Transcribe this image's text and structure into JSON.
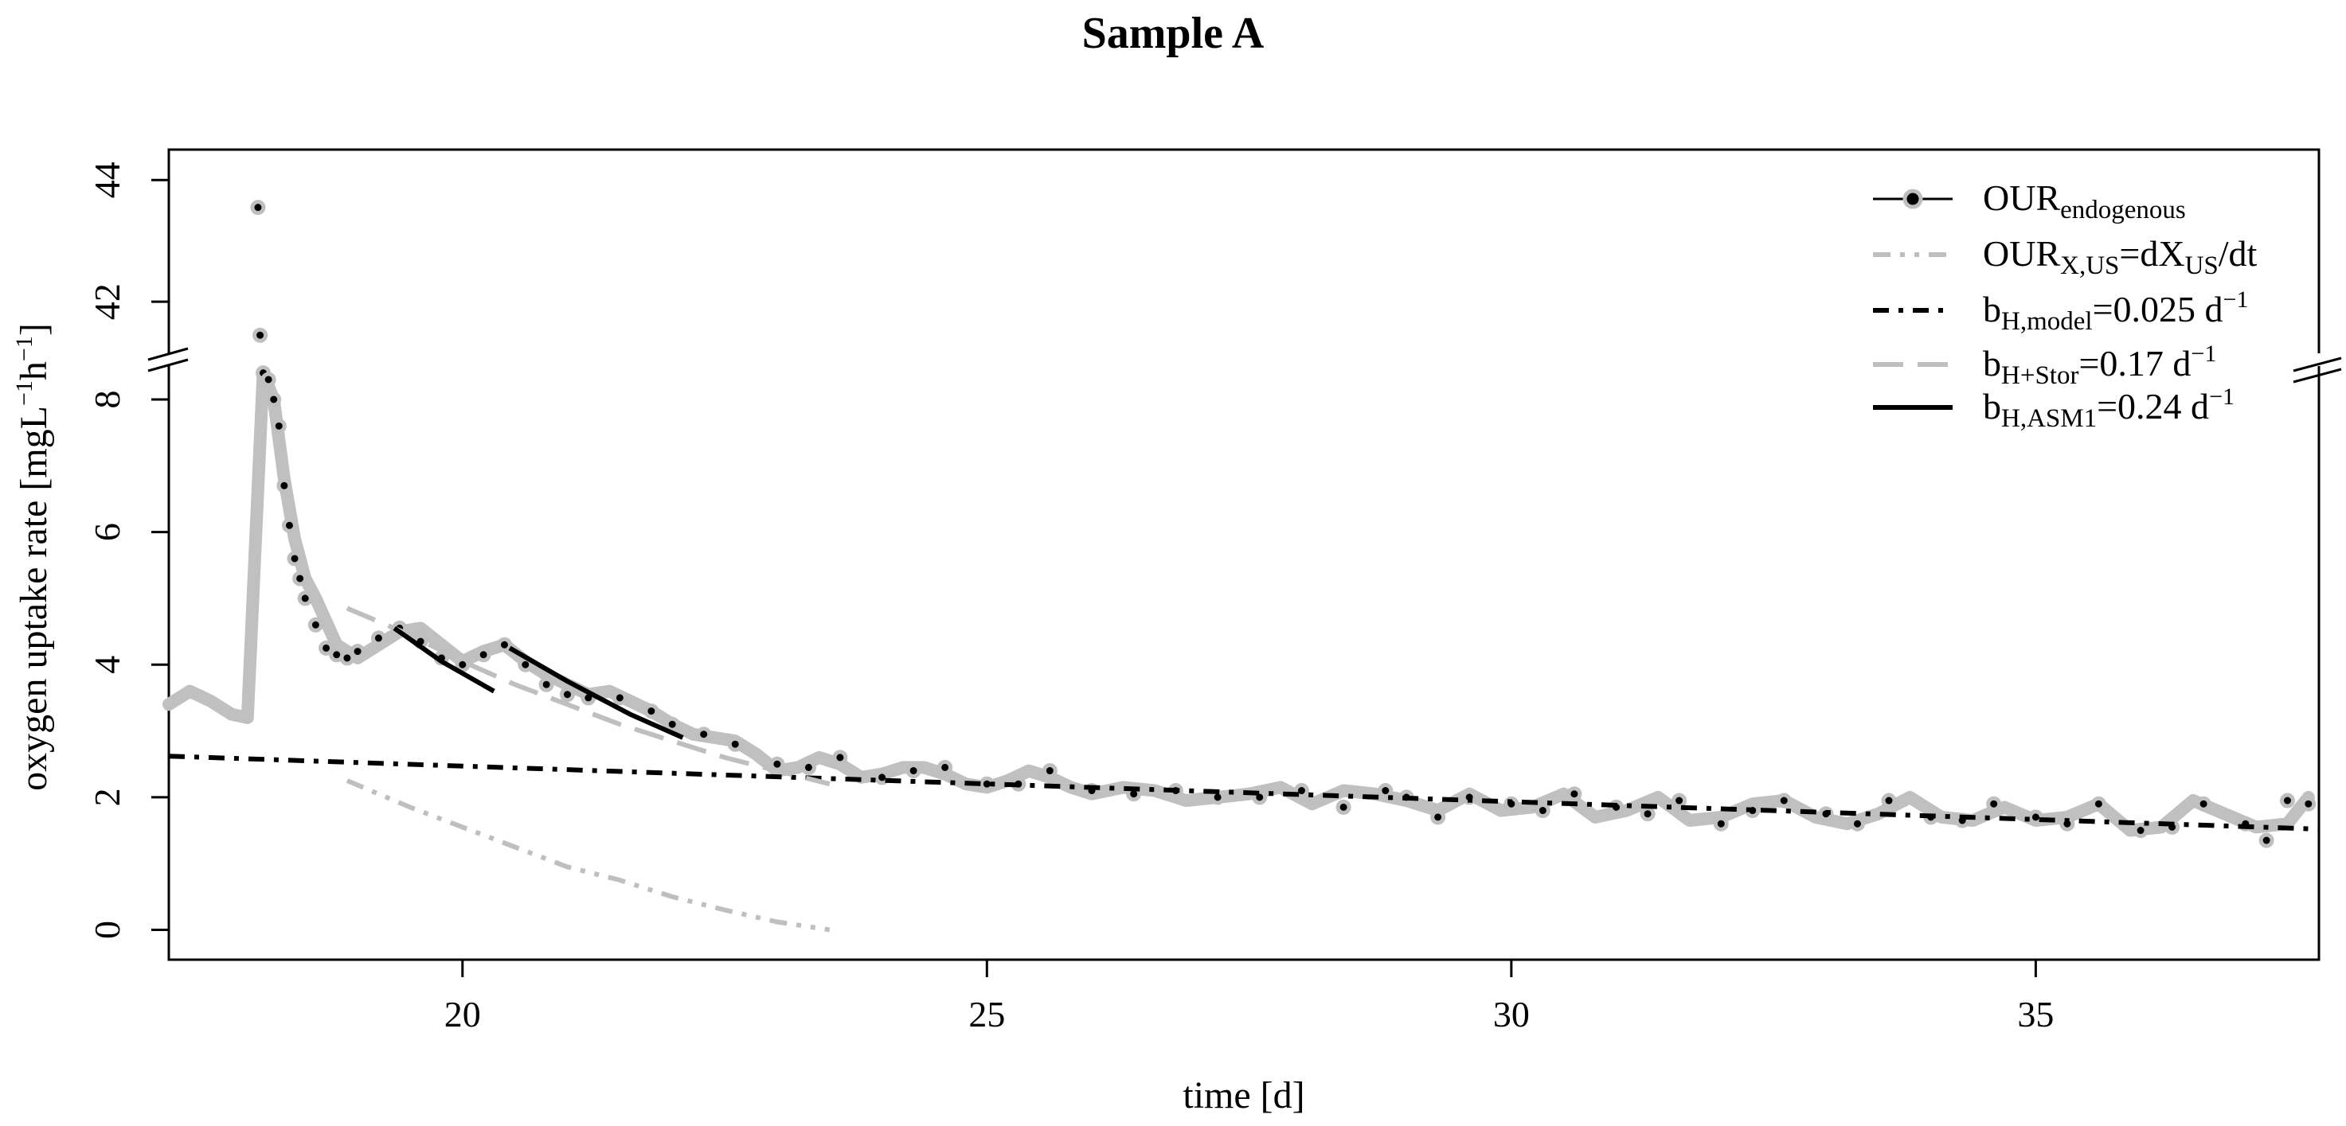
{
  "chart_data": {
    "type": "line",
    "title": "Sample A",
    "xlabel": "time [d]",
    "ylabel_parts": {
      "prefix": "oxygen uptake rate [mgL",
      "sup1": "−1",
      "mid": "h",
      "sup2": "−1",
      "suffix": "]"
    },
    "xlim": [
      17.2,
      37.7
    ],
    "xticks": [
      20,
      25,
      30,
      35
    ],
    "ylim_lower": [
      -0.45,
      8.6
    ],
    "yticks_lower": [
      0,
      2,
      4,
      6,
      8
    ],
    "ylim_upper": [
      41.1,
      44.5
    ],
    "yticks_upper": [
      42,
      44
    ],
    "axis_break": true,
    "grid": false,
    "legend_position": "top-right",
    "series": [
      {
        "name": "OUR",
        "name_sub": "endogenous",
        "name_sup": "",
        "name_tail": "",
        "color": "#000000",
        "style": "points-line",
        "x": [
          18.05,
          18.07,
          18.1,
          18.15,
          18.2,
          18.25,
          18.3,
          18.35,
          18.4,
          18.45,
          18.5,
          18.6,
          18.7,
          18.8,
          18.9,
          19.0,
          19.2,
          19.4,
          19.6,
          19.8,
          20.0,
          20.2,
          20.4,
          20.6,
          20.8,
          21.0,
          21.2,
          21.5,
          21.8,
          22.0,
          22.3,
          22.6,
          23.0,
          23.3,
          23.6,
          24.0,
          24.3,
          24.6,
          25.0,
          25.3,
          25.6,
          26.0,
          26.4,
          26.8,
          27.2,
          27.6,
          28.0,
          28.4,
          28.8,
          29.0,
          29.3,
          29.6,
          30.0,
          30.3,
          30.6,
          31.0,
          31.3,
          31.6,
          32.0,
          32.3,
          32.6,
          33.0,
          33.3,
          33.6,
          34.0,
          34.3,
          34.6,
          35.0,
          35.3,
          35.6,
          36.0,
          36.3,
          36.6,
          37.0,
          37.2,
          37.4,
          37.6
        ],
        "y": [
          43.55,
          41.45,
          8.4,
          8.3,
          8.0,
          7.6,
          6.7,
          6.1,
          5.6,
          5.3,
          5.0,
          4.6,
          4.25,
          4.15,
          4.1,
          4.2,
          4.4,
          4.55,
          4.35,
          4.1,
          4.0,
          4.15,
          4.3,
          4.0,
          3.7,
          3.55,
          3.5,
          3.5,
          3.3,
          3.1,
          2.95,
          2.8,
          2.5,
          2.45,
          2.6,
          2.3,
          2.4,
          2.45,
          2.2,
          2.2,
          2.4,
          2.1,
          2.05,
          2.1,
          2.0,
          2.0,
          2.1,
          1.85,
          2.1,
          2.0,
          1.7,
          2.0,
          1.9,
          1.8,
          2.05,
          1.85,
          1.75,
          1.95,
          1.6,
          1.8,
          1.95,
          1.75,
          1.6,
          1.95,
          1.7,
          1.65,
          1.9,
          1.7,
          1.6,
          1.9,
          1.5,
          1.55,
          1.9,
          1.6,
          1.35,
          1.95,
          1.9
        ]
      },
      {
        "name": "OUR",
        "name_sub": "X,US",
        "name_sup": "",
        "name_tail": "=dX",
        "name_sub2": "US",
        "name_tail2": "/dt",
        "color": "#bfbfbf",
        "style": "dash-dot-dot",
        "x": [
          18.9,
          19.5,
          20.0,
          20.5,
          21.0,
          21.5,
          22.0,
          22.5,
          23.0,
          23.5
        ],
        "y": [
          2.25,
          1.85,
          1.55,
          1.25,
          0.95,
          0.75,
          0.5,
          0.3,
          0.12,
          0.0
        ]
      },
      {
        "name": "b",
        "name_sub": "H,model",
        "name_tail": "=0.025 d",
        "name_sup": "−1",
        "color": "#000000",
        "style": "dash-dot",
        "x": [
          17.2,
          37.7
        ],
        "y": [
          2.62,
          1.52
        ]
      },
      {
        "name": "b",
        "name_sub": "H+Stor",
        "name_tail": "=0.17 d",
        "name_sup": "−1",
        "color": "#bfbfbf",
        "style": "dashed",
        "x": [
          18.9,
          19.5,
          20.0,
          20.5,
          21.0,
          21.5,
          22.0,
          22.5,
          23.0,
          23.5
        ],
        "y": [
          4.85,
          4.45,
          4.05,
          3.7,
          3.4,
          3.1,
          2.85,
          2.6,
          2.4,
          2.2
        ]
      },
      {
        "name": "b",
        "name_sub": "H,ASM1",
        "name_tail": "=0.24 d",
        "name_sup": "−1",
        "color": "#000000",
        "style": "solid",
        "segments": [
          {
            "x": [
              19.35,
              19.8,
              20.3
            ],
            "y": [
              4.55,
              4.05,
              3.6
            ]
          },
          {
            "x": [
              20.45,
              21.0,
              21.6,
              22.1
            ],
            "y": [
              4.25,
              3.75,
              3.25,
              2.9
            ]
          }
        ]
      }
    ],
    "background_trace": {
      "color": "#c0c0c0",
      "x": [
        17.2,
        17.4,
        17.6,
        17.8,
        17.95,
        18.1,
        18.2,
        18.3,
        18.4,
        18.5,
        18.6,
        18.8,
        19.0,
        19.2,
        19.4,
        19.6,
        19.8,
        20.0,
        20.2,
        20.4,
        20.6,
        20.8,
        21.0,
        21.2,
        21.4,
        21.6,
        21.8,
        22.0,
        22.2,
        22.4,
        22.6,
        22.8,
        23.0,
        23.2,
        23.4,
        23.6,
        23.8,
        24.0,
        24.2,
        24.4,
        24.6,
        24.8,
        25.0,
        25.2,
        25.4,
        25.6,
        25.8,
        26.0,
        26.3,
        26.6,
        26.9,
        27.2,
        27.5,
        27.8,
        28.1,
        28.4,
        28.7,
        29.0,
        29.3,
        29.6,
        29.9,
        30.2,
        30.5,
        30.8,
        31.1,
        31.4,
        31.7,
        32.0,
        32.3,
        32.6,
        32.9,
        33.2,
        33.5,
        33.8,
        34.1,
        34.4,
        34.7,
        35.0,
        35.3,
        35.6,
        35.9,
        36.2,
        36.5,
        36.8,
        37.1,
        37.4,
        37.6
      ],
      "y": [
        3.4,
        3.6,
        3.45,
        3.25,
        3.2,
        8.4,
        8.0,
        6.8,
        5.9,
        5.3,
        5.0,
        4.3,
        4.1,
        4.3,
        4.5,
        4.55,
        4.3,
        4.05,
        4.2,
        4.3,
        4.05,
        3.85,
        3.7,
        3.55,
        3.6,
        3.45,
        3.3,
        3.1,
        2.95,
        2.9,
        2.85,
        2.65,
        2.4,
        2.45,
        2.6,
        2.5,
        2.3,
        2.35,
        2.45,
        2.45,
        2.35,
        2.2,
        2.15,
        2.25,
        2.4,
        2.3,
        2.15,
        2.05,
        2.15,
        2.1,
        1.95,
        2.0,
        2.05,
        2.15,
        1.9,
        2.1,
        2.05,
        1.95,
        1.8,
        2.05,
        1.8,
        1.85,
        2.05,
        1.7,
        1.8,
        2.0,
        1.65,
        1.7,
        1.9,
        1.95,
        1.7,
        1.6,
        1.75,
        2.0,
        1.7,
        1.65,
        1.85,
        1.65,
        1.7,
        1.9,
        1.5,
        1.55,
        1.95,
        1.75,
        1.55,
        1.6,
        2.0
      ]
    }
  }
}
